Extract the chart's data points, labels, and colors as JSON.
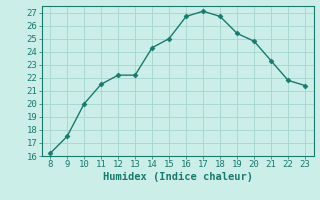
{
  "x": [
    8,
    9,
    10,
    11,
    12,
    13,
    14,
    15,
    16,
    17,
    18,
    19,
    20,
    21,
    22,
    23
  ],
  "y": [
    16.2,
    17.5,
    20.0,
    21.5,
    22.2,
    22.2,
    24.3,
    25.0,
    26.7,
    27.1,
    26.7,
    25.4,
    24.8,
    23.3,
    21.8,
    21.4
  ],
  "xlim": [
    7.5,
    23.5
  ],
  "ylim": [
    16,
    27.5
  ],
  "xticks": [
    8,
    9,
    10,
    11,
    12,
    13,
    14,
    15,
    16,
    17,
    18,
    19,
    20,
    21,
    22,
    23
  ],
  "yticks": [
    16,
    17,
    18,
    19,
    20,
    21,
    22,
    23,
    24,
    25,
    26,
    27
  ],
  "xlabel": "Humidex (Indice chaleur)",
  "line_color": "#1a7a6e",
  "marker": "D",
  "marker_size": 2.5,
  "bg_color": "#cceee8",
  "grid_color": "#aad8d0",
  "label_fontsize": 7.5,
  "tick_fontsize": 6.5
}
